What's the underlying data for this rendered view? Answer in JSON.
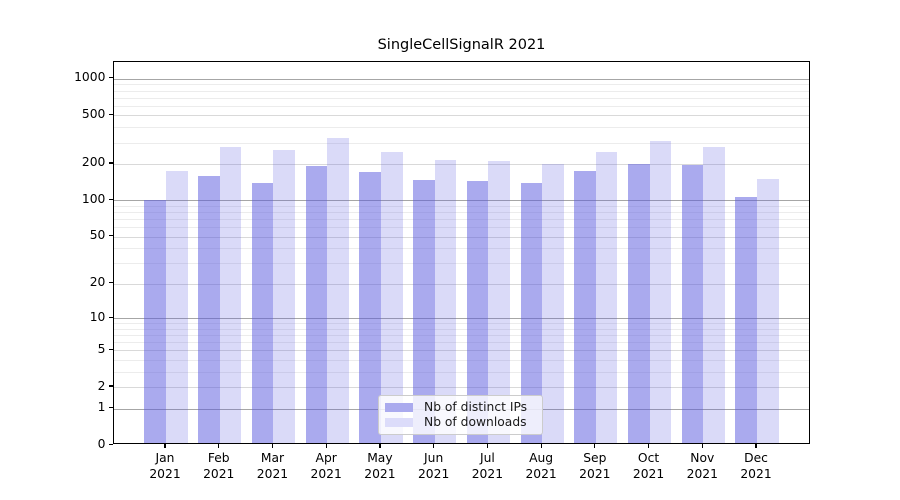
{
  "title": "SingleCellSignalR 2021",
  "chart_data": {
    "type": "bar",
    "title": "SingleCellSignalR 2021",
    "y_scale": "symlog-like: y position proportional to log10(1+value)",
    "grid": "horizontal",
    "legend_position": "lower center",
    "categories": [
      "Jan 2021",
      "Feb 2021",
      "Mar 2021",
      "Apr 2021",
      "May 2021",
      "Jun 2021",
      "Jul 2021",
      "Aug 2021",
      "Sep 2021",
      "Oct 2021",
      "Nov 2021",
      "Dec 2021"
    ],
    "x_tick_line1": [
      "Jan",
      "Feb",
      "Mar",
      "Apr",
      "May",
      "Jun",
      "Jul",
      "Aug",
      "Sep",
      "Oct",
      "Nov",
      "Dec"
    ],
    "x_tick_line2": "2021",
    "series": [
      {
        "name": "Nb of distinct IPs",
        "values": [
          97,
          152,
          134,
          184,
          166,
          141,
          140,
          135,
          170,
          193,
          188,
          103
        ],
        "bar_color": "rgba(85,85,221,0.50)",
        "legend_color": "#aaaaee"
      },
      {
        "name": "Nb of downloads",
        "values": [
          168,
          263,
          252,
          317,
          242,
          208,
          202,
          192,
          243,
          296,
          264,
          146
        ],
        "bar_color": "rgba(85,85,221,0.22)",
        "legend_color": "#dcdcfa"
      }
    ],
    "y_major_ticks": [
      0,
      1,
      2,
      5,
      10,
      20,
      50,
      100,
      200,
      500,
      1000
    ],
    "y_minor_gridlines": [
      3,
      4,
      6,
      7,
      8,
      9,
      30,
      40,
      60,
      70,
      80,
      90,
      300,
      400,
      600,
      700,
      800,
      900
    ],
    "ylim": [
      0,
      1400
    ],
    "colors": {
      "decade_grid": "#a6a6a6",
      "submajor_grid": "#d9d9d9",
      "minor_grid": "#ececec",
      "spine": "#000000",
      "text": "#000000",
      "legend_bg": "rgba(255,255,255,0.8)",
      "legend_border": "#cccccc"
    }
  }
}
